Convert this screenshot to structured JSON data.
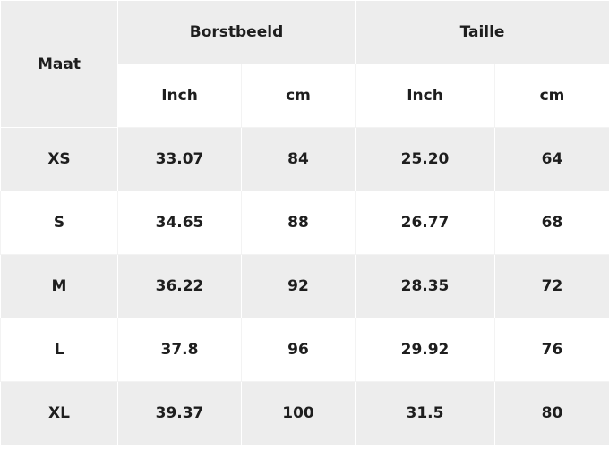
{
  "table": {
    "header": {
      "size": "Maat",
      "groups": [
        "Borstbeeld",
        "Taille"
      ],
      "units": [
        "Inch",
        "cm",
        "Inch",
        "cm"
      ]
    },
    "rows": [
      [
        "XS",
        "33.07",
        "84",
        "25.20",
        "64"
      ],
      [
        "S",
        "34.65",
        "88",
        "26.77",
        "68"
      ],
      [
        "M",
        "36.22",
        "92",
        "28.35",
        "72"
      ],
      [
        "L",
        "37.8",
        "96",
        "29.92",
        "76"
      ],
      [
        "XL",
        "39.37",
        "100",
        "31.5",
        "80"
      ]
    ]
  }
}
